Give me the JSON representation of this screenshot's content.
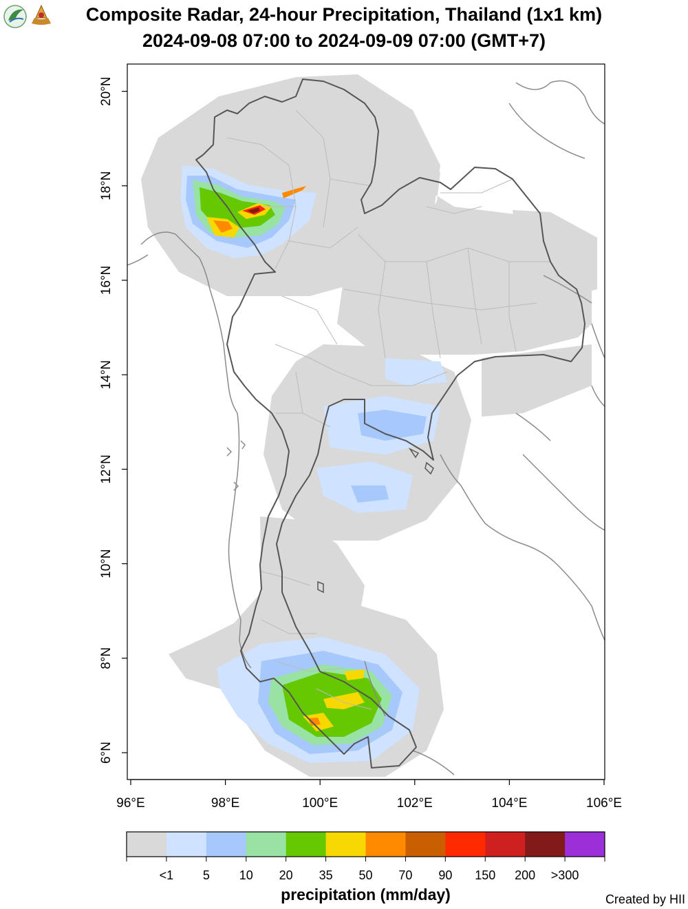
{
  "header": {
    "title": "Composite Radar, 24-hour Precipitation, Thailand (1x1 km)",
    "subtitle": "2024-09-08 07:00 to 2024-09-09 07:00 (GMT+7)"
  },
  "map": {
    "lon_ticks": [
      "96°E",
      "98°E",
      "100°E",
      "102°E",
      "104°E",
      "106°E"
    ],
    "lat_ticks": [
      "6°N",
      "8°N",
      "10°N",
      "12°N",
      "14°N",
      "16°N",
      "18°N",
      "20°N"
    ],
    "colors": {
      "coverage": "#d9d9d9",
      "border": "#555555",
      "province": "#bbbbbb",
      "coast": "#8a8a8a"
    }
  },
  "legend": {
    "title": "precipitation (mm/day)",
    "labels": [
      "<1",
      "5",
      "10",
      "20",
      "35",
      "50",
      "70",
      "90",
      "150",
      "200",
      ">300"
    ],
    "colors": [
      "#d9d9d9",
      "#cfe2ff",
      "#a6c8fb",
      "#98e3a3",
      "#66c800",
      "#f7d800",
      "#ff8a00",
      "#c95f00",
      "#ff2a00",
      "#cf2020",
      "#821a1a",
      "#9b30d9"
    ]
  },
  "footer": {
    "credit": "Created by HII"
  }
}
